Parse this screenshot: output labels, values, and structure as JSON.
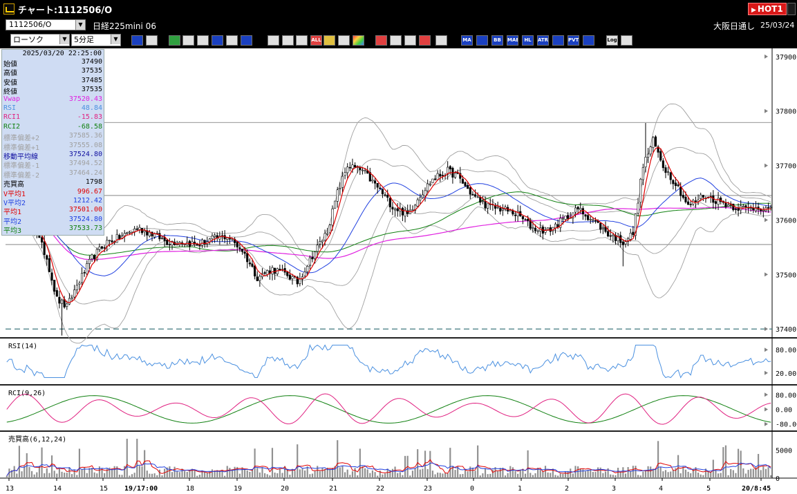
{
  "window": {
    "title": "チャート:1112506/O",
    "hot_label": "HOT1"
  },
  "symbol_bar": {
    "symbol_code": "1112506/O",
    "symbol_name": "日経225mini 06",
    "exchange": "大阪日通し",
    "date": "25/03/24"
  },
  "toolbar": {
    "chart_type": "ローソク",
    "interval": "5分足",
    "buttons": [
      "zoom",
      "crosshair",
      "pen",
      "line",
      "cursor",
      "undo",
      "memo",
      "trash",
      "candle",
      "bar",
      "line-chart",
      "ALL",
      "settings",
      "tool",
      "palette",
      "alert",
      "search",
      "chart-a",
      "chart-b",
      "info",
      "MA",
      "BB",
      "MAE",
      "HL",
      "ATR",
      "RAVI",
      "PVT",
      "box",
      "Log",
      "export"
    ],
    "indicator_labels": [
      "MA",
      "BB",
      "MAE",
      "HL",
      "ATR",
      "PVT",
      "Log",
      "ALL"
    ]
  },
  "info_panel": {
    "datetime": "2025/03/20  22:25:00",
    "rows": [
      {
        "label": "始値",
        "value": "37490",
        "color": "#000000"
      },
      {
        "label": "高値",
        "value": "37535",
        "color": "#000000"
      },
      {
        "label": "安値",
        "value": "37485",
        "color": "#000000"
      },
      {
        "label": "終値",
        "value": "37535",
        "color": "#000000"
      },
      {
        "label": "Vwap",
        "value": "37520.43",
        "color": "#e020e0"
      },
      {
        "label": "RSI",
        "value": "48.84",
        "color": "#4a90e0"
      },
      {
        "label": "RCI1",
        "value": "-15.83",
        "color": "#e02080"
      },
      {
        "label": "RCI2",
        "value": "-68.58",
        "color": "#108010"
      },
      {
        "label": "標準偏差+2",
        "value": "37585.36",
        "color": "#a0a0a0"
      },
      {
        "label": "標準偏差+1",
        "value": "37555.08",
        "color": "#a0a0a0"
      },
      {
        "label": "移動平均線",
        "value": "37524.80",
        "color": "#1010a0"
      },
      {
        "label": "標準偏差-1",
        "value": "37494.52",
        "color": "#a0a0a0"
      },
      {
        "label": "標準偏差-2",
        "value": "37464.24",
        "color": "#a0a0a0"
      },
      {
        "label": "売買高",
        "value": "1798",
        "color": "#000000"
      },
      {
        "label": "V平均1",
        "value": "996.67",
        "color": "#e00000"
      },
      {
        "label": "V平均2",
        "value": "1212.42",
        "color": "#2040e0"
      },
      {
        "label": "平均1",
        "value": "37501.00",
        "color": "#e00000"
      },
      {
        "label": "平均2",
        "value": "37524.80",
        "color": "#2040e0"
      },
      {
        "label": "平均3",
        "value": "37533.73",
        "color": "#108010"
      }
    ]
  },
  "chart_data": [
    {
      "type": "candlestick",
      "title": "",
      "price_ticks": [
        37900,
        37800,
        37700,
        37600,
        37500,
        37400
      ],
      "ylim": [
        37385,
        37915
      ],
      "horizontal_lines": [
        37779,
        37645,
        37555
      ],
      "dashed_line": 37400,
      "x_labels": [
        "13",
        "14",
        "15",
        "19/17:00",
        "18",
        "19",
        "20",
        "21",
        "22",
        "23",
        "0",
        "1",
        "2",
        "3",
        "4",
        "5",
        "20/8:45"
      ],
      "series_colors": {
        "ma1": "#e00000",
        "ma2": "#2040e0",
        "ma3": "#108010",
        "vwap": "#e020e0",
        "bb": "#a0a0a0"
      },
      "close_keypoints": [
        [
          0,
          37640
        ],
        [
          6,
          37610
        ],
        [
          12,
          37575
        ],
        [
          16,
          37530
        ],
        [
          20,
          37455
        ],
        [
          24,
          37440
        ],
        [
          28,
          37480
        ],
        [
          34,
          37530
        ],
        [
          40,
          37560
        ],
        [
          46,
          37570
        ],
        [
          52,
          37585
        ],
        [
          58,
          37575
        ],
        [
          64,
          37560
        ],
        [
          70,
          37560
        ],
        [
          76,
          37555
        ],
        [
          82,
          37565
        ],
        [
          88,
          37570
        ],
        [
          94,
          37545
        ],
        [
          100,
          37495
        ],
        [
          106,
          37510
        ],
        [
          112,
          37500
        ],
        [
          116,
          37485
        ],
        [
          122,
          37535
        ],
        [
          128,
          37580
        ],
        [
          132,
          37650
        ],
        [
          136,
          37700
        ],
        [
          142,
          37690
        ],
        [
          148,
          37660
        ],
        [
          154,
          37625
        ],
        [
          160,
          37610
        ],
        [
          164,
          37640
        ],
        [
          170,
          37675
        ],
        [
          176,
          37690
        ],
        [
          180,
          37680
        ],
        [
          186,
          37645
        ],
        [
          192,
          37625
        ],
        [
          198,
          37620
        ],
        [
          204,
          37610
        ],
        [
          210,
          37585
        ],
        [
          216,
          37580
        ],
        [
          222,
          37600
        ],
        [
          228,
          37620
        ],
        [
          234,
          37600
        ],
        [
          240,
          37575
        ],
        [
          246,
          37560
        ],
        [
          250,
          37575
        ],
        [
          254,
          37700
        ],
        [
          258,
          37745
        ],
        [
          262,
          37700
        ],
        [
          268,
          37660
        ],
        [
          272,
          37625
        ],
        [
          278,
          37645
        ],
        [
          284,
          37635
        ],
        [
          290,
          37625
        ],
        [
          296,
          37620
        ],
        [
          300,
          37625
        ],
        [
          306,
          37615
        ]
      ]
    },
    {
      "type": "line",
      "title": "RSI(14)",
      "ticks": [
        80,
        20
      ],
      "ylim": [
        0,
        100
      ],
      "series": [
        {
          "name": "RSI",
          "color": "#4a90e0"
        }
      ]
    },
    {
      "type": "line",
      "title": "RCI(9,26)",
      "ticks": [
        "80.00",
        "0.00",
        "-80.00"
      ],
      "ylim": [
        -100,
        100
      ],
      "series": [
        {
          "name": "RCI1",
          "color": "#e02080"
        },
        {
          "name": "RCI2",
          "color": "#108010"
        }
      ]
    },
    {
      "type": "bar",
      "title": "売買高(6,12,24)",
      "ticks": [
        "5000",
        "0"
      ],
      "ylim": [
        0,
        7500
      ],
      "series": [
        {
          "name": "売買高",
          "color": "#909090"
        },
        {
          "name": "V平均1",
          "color": "#e00000"
        },
        {
          "name": "V平均2",
          "color": "#2040e0"
        }
      ]
    }
  ]
}
